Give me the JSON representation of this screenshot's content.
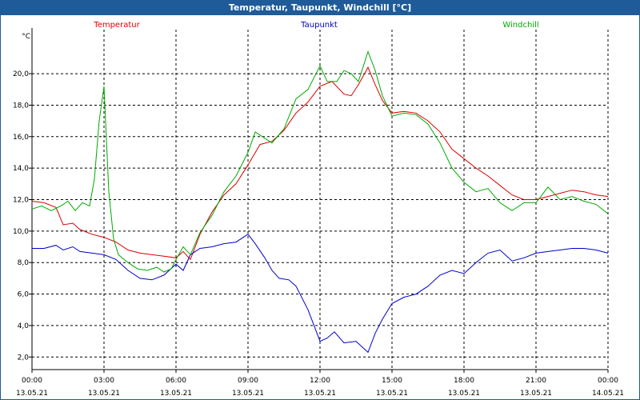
{
  "window": {
    "title": "Temperatur, Taupunkt, Windchill [°C]"
  },
  "chart_data": {
    "type": "line",
    "title": "Temperatur, Taupunkt, Windchill [°C]",
    "ylabel": "°C",
    "ylim": [
      1.2,
      22.8
    ],
    "yticks": [
      2.0,
      4.0,
      6.0,
      8.0,
      10.0,
      12.0,
      14.0,
      16.0,
      18.0,
      20.0
    ],
    "ytick_labels": [
      "2,0",
      "4,0",
      "6,0",
      "8,0",
      "10,0",
      "12,0",
      "14,0",
      "16,0",
      "18,0",
      "20,0"
    ],
    "xlim": [
      0,
      24
    ],
    "xticks": [
      0,
      3,
      6,
      9,
      12,
      15,
      18,
      21,
      24
    ],
    "xtick_time": [
      "00:00",
      "03:00",
      "06:00",
      "09:00",
      "12:00",
      "15:00",
      "18:00",
      "21:00",
      "00:00"
    ],
    "xtick_date": [
      "13.05.21",
      "13.05.21",
      "13.05.21",
      "13.05.21",
      "13.05.21",
      "13.05.21",
      "13.05.21",
      "13.05.21",
      "14.05.21"
    ],
    "grid": true,
    "legend_position": "top",
    "series": [
      {
        "name": "Temperatur",
        "color": "#dd0000",
        "x": [
          0,
          0.5,
          1,
          1.3,
          1.7,
          2,
          2.5,
          3,
          3.5,
          4,
          4.5,
          5,
          5.5,
          6,
          6.3,
          6.6,
          7,
          7.5,
          8,
          8.5,
          9,
          9.5,
          10,
          10.5,
          11,
          11.5,
          12,
          12.5,
          13,
          13.3,
          13.6,
          14,
          14.3,
          14.6,
          15,
          15.5,
          16,
          16.5,
          17,
          17.5,
          18,
          18.5,
          19,
          19.5,
          20,
          20.5,
          21,
          21.5,
          22,
          22.5,
          23,
          23.5,
          24
        ],
        "y": [
          11.9,
          11.8,
          11.5,
          10.4,
          10.5,
          10.1,
          9.8,
          9.6,
          9.3,
          8.8,
          8.6,
          8.5,
          8.4,
          8.3,
          8.7,
          8.2,
          9.8,
          11.2,
          12.3,
          13.0,
          14.2,
          15.5,
          15.7,
          16.4,
          17.5,
          18.2,
          19.2,
          19.5,
          18.7,
          18.6,
          19.3,
          20.4,
          19.3,
          18.3,
          17.5,
          17.6,
          17.5,
          17.0,
          16.3,
          15.2,
          14.6,
          14.0,
          13.5,
          12.9,
          12.3,
          12.0,
          12.0,
          12.2,
          12.4,
          12.6,
          12.5,
          12.3,
          12.2
        ]
      },
      {
        "name": "Taupunkt",
        "color": "#0000cc",
        "x": [
          0,
          0.5,
          1,
          1.3,
          1.7,
          2,
          2.5,
          3,
          3.5,
          4,
          4.5,
          5,
          5.5,
          6,
          6.3,
          6.6,
          7,
          7.5,
          8,
          8.5,
          9,
          9.3,
          9.7,
          10,
          10.3,
          10.7,
          11,
          11.5,
          12,
          12.3,
          12.6,
          13,
          13.5,
          14,
          14.3,
          14.6,
          15,
          15.5,
          16,
          16.5,
          17,
          17.5,
          18,
          18.5,
          19,
          19.5,
          20,
          20.5,
          21,
          21.5,
          22,
          22.5,
          23,
          23.5,
          24
        ],
        "y": [
          8.9,
          8.9,
          9.1,
          8.8,
          9.0,
          8.7,
          8.6,
          8.5,
          8.2,
          7.5,
          7.0,
          6.9,
          7.2,
          7.9,
          7.5,
          8.5,
          8.9,
          9.0,
          9.2,
          9.3,
          9.8,
          9.2,
          8.3,
          7.5,
          7.0,
          6.9,
          6.5,
          5.0,
          3.0,
          3.2,
          3.6,
          2.9,
          3.0,
          2.3,
          3.5,
          4.4,
          5.4,
          5.8,
          6.0,
          6.5,
          7.2,
          7.5,
          7.3,
          8.0,
          8.6,
          8.8,
          8.1,
          8.3,
          8.6,
          8.7,
          8.8,
          8.9,
          8.9,
          8.8,
          8.6
        ]
      },
      {
        "name": "Windchill",
        "color": "#00aa00",
        "x": [
          0,
          0.4,
          0.8,
          1.2,
          1.5,
          1.8,
          2.1,
          2.4,
          2.6,
          2.8,
          3.0,
          3.2,
          3.4,
          3.6,
          4.0,
          4.4,
          4.8,
          5.2,
          5.5,
          5.8,
          6.0,
          6.3,
          6.6,
          7.0,
          7.5,
          8.0,
          8.5,
          9.0,
          9.3,
          9.6,
          10.0,
          10.5,
          11.0,
          11.5,
          12.0,
          12.3,
          12.7,
          13.0,
          13.3,
          13.6,
          14.0,
          14.3,
          14.6,
          15.0,
          15.5,
          16.0,
          16.5,
          17.0,
          17.5,
          18.0,
          18.5,
          19.0,
          19.5,
          20.0,
          20.5,
          21.0,
          21.5,
          22.0,
          22.5,
          23.0,
          23.5,
          24.0
        ],
        "y": [
          11.4,
          11.6,
          11.3,
          11.6,
          11.9,
          11.3,
          11.8,
          11.6,
          13.3,
          17.0,
          19.2,
          12.5,
          9.5,
          8.5,
          8.0,
          7.6,
          7.5,
          7.7,
          7.4,
          7.6,
          8.2,
          9.0,
          8.5,
          9.9,
          11.0,
          12.5,
          13.5,
          15.0,
          16.3,
          16.0,
          15.6,
          16.5,
          18.4,
          19.0,
          20.5,
          19.5,
          19.5,
          20.2,
          20.0,
          19.5,
          21.4,
          20.2,
          18.6,
          17.3,
          17.5,
          17.4,
          16.8,
          15.6,
          14.0,
          13.1,
          12.5,
          12.7,
          11.8,
          11.3,
          11.8,
          11.8,
          12.8,
          12.0,
          12.2,
          11.9,
          11.7,
          11.1
        ]
      }
    ]
  }
}
